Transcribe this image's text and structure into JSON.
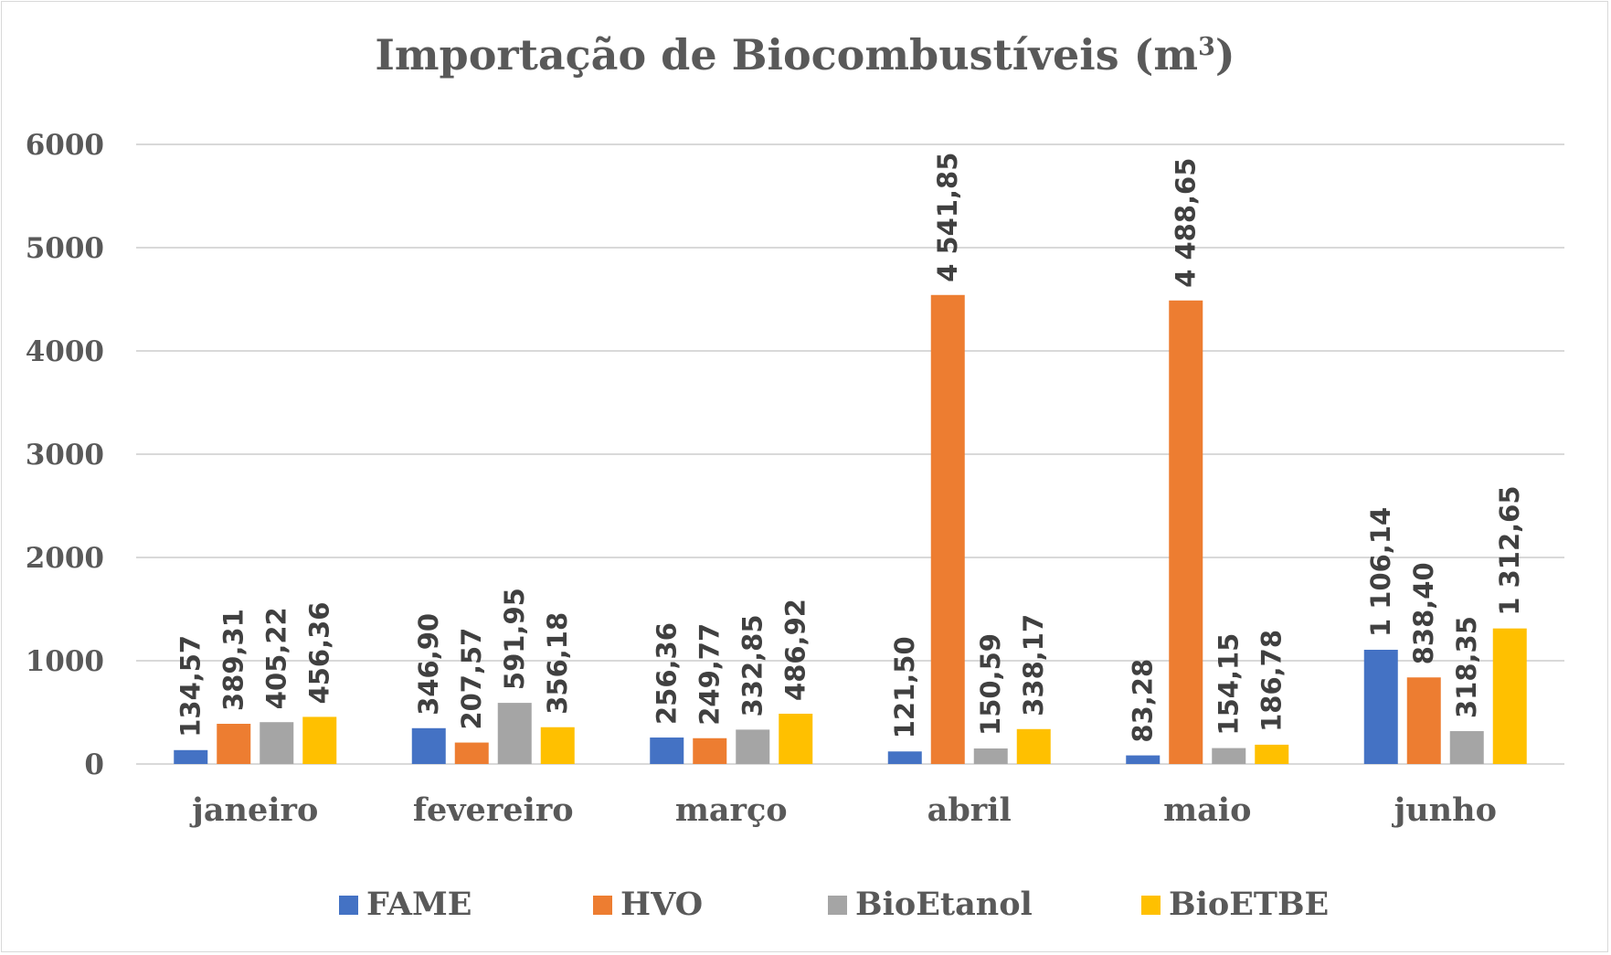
{
  "chart_data": {
    "type": "bar",
    "title": "Importação de Biocombustíveis (m",
    "title_superscript": "3",
    "title_suffix": ")",
    "xlabel": "",
    "ylabel": "",
    "ylim": [
      0,
      6000
    ],
    "yticks": [
      0,
      1000,
      2000,
      3000,
      4000,
      5000,
      6000
    ],
    "ytick_labels": [
      "0",
      "1000",
      "2000",
      "3000",
      "4000",
      "5000",
      "6000"
    ],
    "grid": true,
    "legend_position": "bottom",
    "categories": [
      "janeiro",
      "fevereiro",
      "março",
      "abril",
      "maio",
      "junho"
    ],
    "series": [
      {
        "name": "FAME",
        "color": "#4472c4",
        "values": [
          134.57,
          346.9,
          256.36,
          121.5,
          83.28,
          1106.14
        ],
        "labels": [
          "134,57",
          "346,90",
          "256,36",
          "121,50",
          "83,28",
          "1 106,14"
        ]
      },
      {
        "name": "HVO",
        "color": "#ed7d31",
        "values": [
          389.31,
          207.57,
          249.77,
          4541.85,
          4488.65,
          838.4
        ],
        "labels": [
          "389,31",
          "207,57",
          "249,77",
          "4 541,85",
          "4 488,65",
          "838,40"
        ]
      },
      {
        "name": "BioEtanol",
        "color": "#a5a5a5",
        "values": [
          405.22,
          591.95,
          332.85,
          150.59,
          154.15,
          318.35
        ],
        "labels": [
          "405,22",
          "591,95",
          "332,85",
          "150,59",
          "154,15",
          "318,35"
        ]
      },
      {
        "name": "BioETBE",
        "color": "#ffc000",
        "values": [
          456.36,
          356.18,
          486.92,
          338.17,
          186.78,
          1312.65
        ],
        "labels": [
          "456,36",
          "356,18",
          "486,92",
          "338,17",
          "186,78",
          "1 312,65"
        ]
      }
    ],
    "colors": {
      "gridline": "#d9d9d9",
      "axis_text": "#595959",
      "data_label_text": "#404040"
    }
  }
}
